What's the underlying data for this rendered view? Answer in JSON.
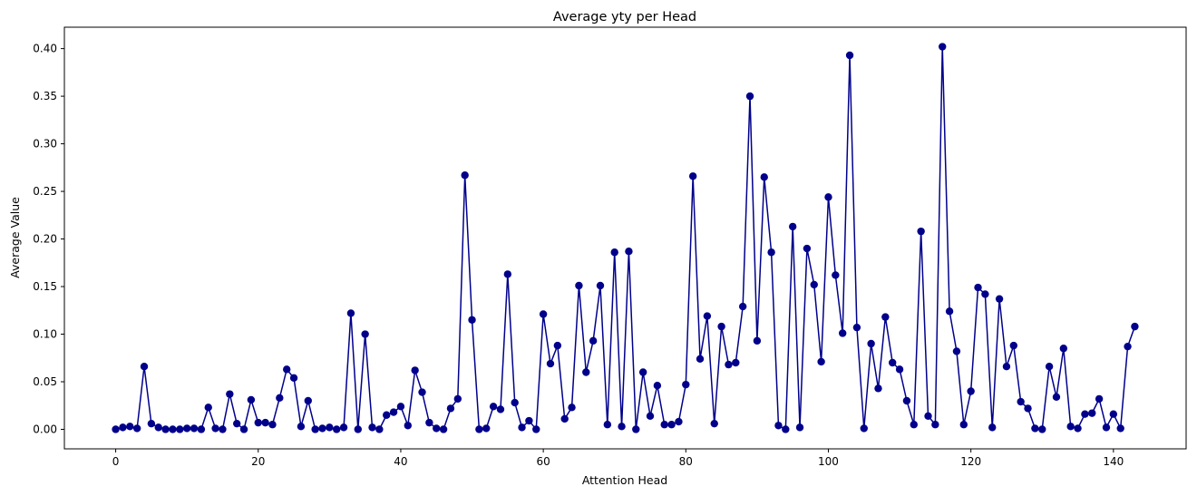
{
  "chart_data": {
    "type": "line",
    "title": "Average yty per Head",
    "xlabel": "Attention Head",
    "ylabel": "Average Value",
    "xlim": [
      -7.2,
      150.2
    ],
    "ylim": [
      -0.0205,
      0.4225
    ],
    "xticks": [
      0,
      20,
      40,
      60,
      80,
      100,
      120,
      140
    ],
    "xtick_labels": [
      "0",
      "20",
      "40",
      "60",
      "80",
      "100",
      "120",
      "140"
    ],
    "yticks": [
      0.0,
      0.05,
      0.1,
      0.15,
      0.2,
      0.25,
      0.3,
      0.35,
      0.4
    ],
    "ytick_labels": [
      "0.00",
      "0.05",
      "0.10",
      "0.15",
      "0.20",
      "0.25",
      "0.30",
      "0.35",
      "0.40"
    ],
    "grid": false,
    "legend": "none",
    "series": [
      {
        "color": "#00008b",
        "marker": "circle",
        "x": [
          0,
          1,
          2,
          3,
          4,
          5,
          6,
          7,
          8,
          9,
          10,
          11,
          12,
          13,
          14,
          15,
          16,
          17,
          18,
          19,
          20,
          21,
          22,
          23,
          24,
          25,
          26,
          27,
          28,
          29,
          30,
          31,
          32,
          33,
          34,
          35,
          36,
          37,
          38,
          39,
          40,
          41,
          42,
          43,
          44,
          45,
          46,
          47,
          48,
          49,
          50,
          51,
          52,
          53,
          54,
          55,
          56,
          57,
          58,
          59,
          60,
          61,
          62,
          63,
          64,
          65,
          66,
          67,
          68,
          69,
          70,
          71,
          72,
          73,
          74,
          75,
          76,
          77,
          78,
          79,
          80,
          81,
          82,
          83,
          84,
          85,
          86,
          87,
          88,
          89,
          90,
          91,
          92,
          93,
          94,
          95,
          96,
          97,
          98,
          99,
          100,
          101,
          102,
          103,
          104,
          105,
          106,
          107,
          108,
          109,
          110,
          111,
          112,
          113,
          114,
          115,
          116,
          117,
          118,
          119,
          120,
          121,
          122,
          123,
          124,
          125,
          126,
          127,
          128,
          129,
          130,
          131,
          132,
          133,
          134,
          135,
          136,
          137,
          138,
          139,
          140,
          141,
          142,
          143
        ],
        "values": [
          0.0,
          0.002,
          0.003,
          0.001,
          0.066,
          0.006,
          0.002,
          0.0,
          0.0,
          0.0,
          0.001,
          0.001,
          0.0,
          0.023,
          0.001,
          0.0,
          0.037,
          0.006,
          0.0,
          0.031,
          0.007,
          0.007,
          0.005,
          0.033,
          0.063,
          0.054,
          0.003,
          0.03,
          0.0,
          0.001,
          0.002,
          0.0,
          0.002,
          0.122,
          0.0,
          0.1,
          0.002,
          0.0,
          0.015,
          0.018,
          0.024,
          0.004,
          0.062,
          0.039,
          0.007,
          0.001,
          0.0,
          0.022,
          0.032,
          0.267,
          0.115,
          0.0,
          0.001,
          0.024,
          0.021,
          0.163,
          0.028,
          0.002,
          0.009,
          0.0,
          0.121,
          0.069,
          0.088,
          0.011,
          0.023,
          0.151,
          0.06,
          0.093,
          0.151,
          0.005,
          0.186,
          0.003,
          0.187,
          0.0,
          0.06,
          0.014,
          0.046,
          0.005,
          0.005,
          0.008,
          0.047,
          0.266,
          0.074,
          0.119,
          0.006,
          0.108,
          0.068,
          0.07,
          0.129,
          0.35,
          0.093,
          0.265,
          0.186,
          0.004,
          0.0,
          0.213,
          0.002,
          0.19,
          0.152,
          0.071,
          0.244,
          0.162,
          0.101,
          0.393,
          0.107,
          0.001,
          0.09,
          0.043,
          0.118,
          0.07,
          0.063,
          0.03,
          0.005,
          0.208,
          0.014,
          0.005,
          0.402,
          0.124,
          0.082,
          0.005,
          0.04,
          0.149,
          0.142,
          0.002,
          0.137,
          0.066,
          0.088,
          0.029,
          0.022,
          0.001,
          0.0,
          0.066,
          0.034,
          0.085,
          0.003,
          0.001,
          0.016,
          0.017,
          0.032,
          0.002,
          0.016,
          0.001,
          0.087,
          0.108
        ]
      }
    ]
  }
}
